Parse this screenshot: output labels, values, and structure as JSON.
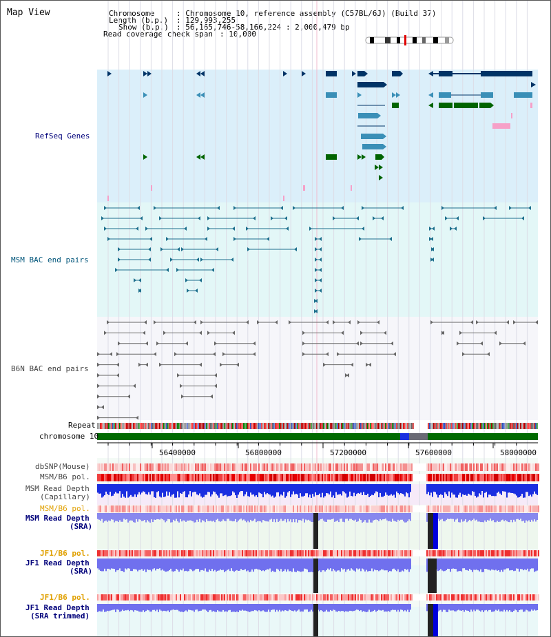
{
  "view_title": "Map View",
  "info": {
    "chromosome_label": "Chromosome",
    "chromosome_value": ": Chromosome 10, reference assembly (C57BL/6J) (Build 37)",
    "length_label": "Length (b.p.)",
    "length_value": ": 129,993,255",
    "show_label": "Show (b.p.)",
    "show_value": ": 56,165,746-58,166,224 : 2,000,479 bp",
    "coverage_label": "Read coverage check span",
    "coverage_value": ": 10,000"
  },
  "tracks": {
    "refseq": "RefSeq Genes",
    "msm_bac": "MSM BAC end pairs",
    "b6n_bac": "B6N BAC end pairs",
    "repeat": "Repeat",
    "chromosome": "chromosome 10",
    "dbsnp": "dbSNP(Mouse)",
    "msm_b6_pol": "MSM/B6 pol.",
    "msm_depth_cap_1": "MSM Read Depth",
    "msm_depth_cap_2": "(Capillary)",
    "msm_b6_pol_2": "MSM/B6 pol.",
    "msm_depth_sra_1": "MSM Read Depth",
    "msm_depth_sra_2": "(SRA)",
    "jf1_b6_pol": "JF1/B6 pol.",
    "jf1_depth_sra_1": "JF1 Read Depth",
    "jf1_depth_sra_2": "(SRA)",
    "jf1_b6_pol_2": "JF1/B6 pol.",
    "jf1_depth_trim_1": "JF1 Read Depth",
    "jf1_depth_trim_2": "(SRA trimmed)"
  },
  "axis": {
    "ticks": [
      "56400000",
      "56800000",
      "57200000",
      "57600000",
      "58000000"
    ]
  },
  "colors": {
    "refseq_bg": "#dbeffa",
    "msm_bg": "#e3f7f7",
    "b6n_bg": "#f6f6fa",
    "chromosome_bar": "#006a00",
    "label_blue": "#00007a",
    "label_orange": "#e0a000",
    "label_gray": "#444444",
    "refseq_dark": "#003366",
    "refseq_mid": "#3a8fb7",
    "refseq_green": "#006400",
    "refseq_pink": "#f6a0c8",
    "depth_blue": "#0000cc",
    "depth_light": "#7777ee"
  }
}
